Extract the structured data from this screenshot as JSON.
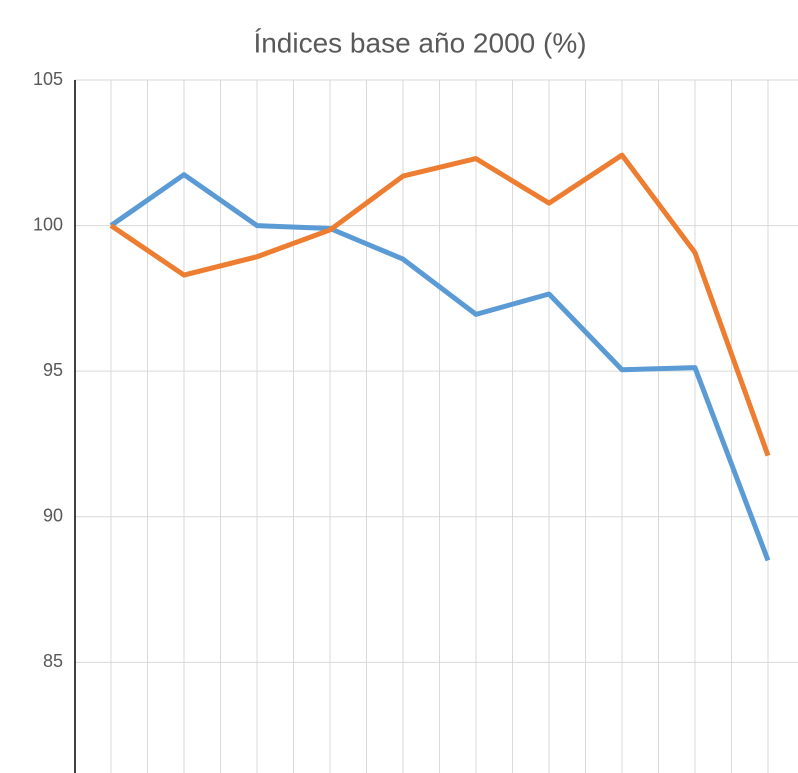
{
  "chart_data": {
    "type": "line",
    "title": "Índices base año 2000 (%)",
    "categories": [
      null,
      null,
      null,
      null,
      null,
      null,
      null,
      null,
      null,
      null
    ],
    "series": [
      {
        "color": "#5b9bd5",
        "values": [
          100,
          101.75,
          100,
          99.9,
          98.85,
          96.95,
          97.65,
          95.05,
          95.12,
          88.5
        ]
      },
      {
        "color": "#ed7d31",
        "values": [
          100,
          98.3,
          98.93,
          99.85,
          101.7,
          102.3,
          100.77,
          102.42,
          99.07,
          92.1
        ]
      }
    ],
    "ylim": [
      81.2,
      105
    ],
    "yticks": [
      85,
      90,
      95,
      100,
      105
    ],
    "grid": true
  }
}
